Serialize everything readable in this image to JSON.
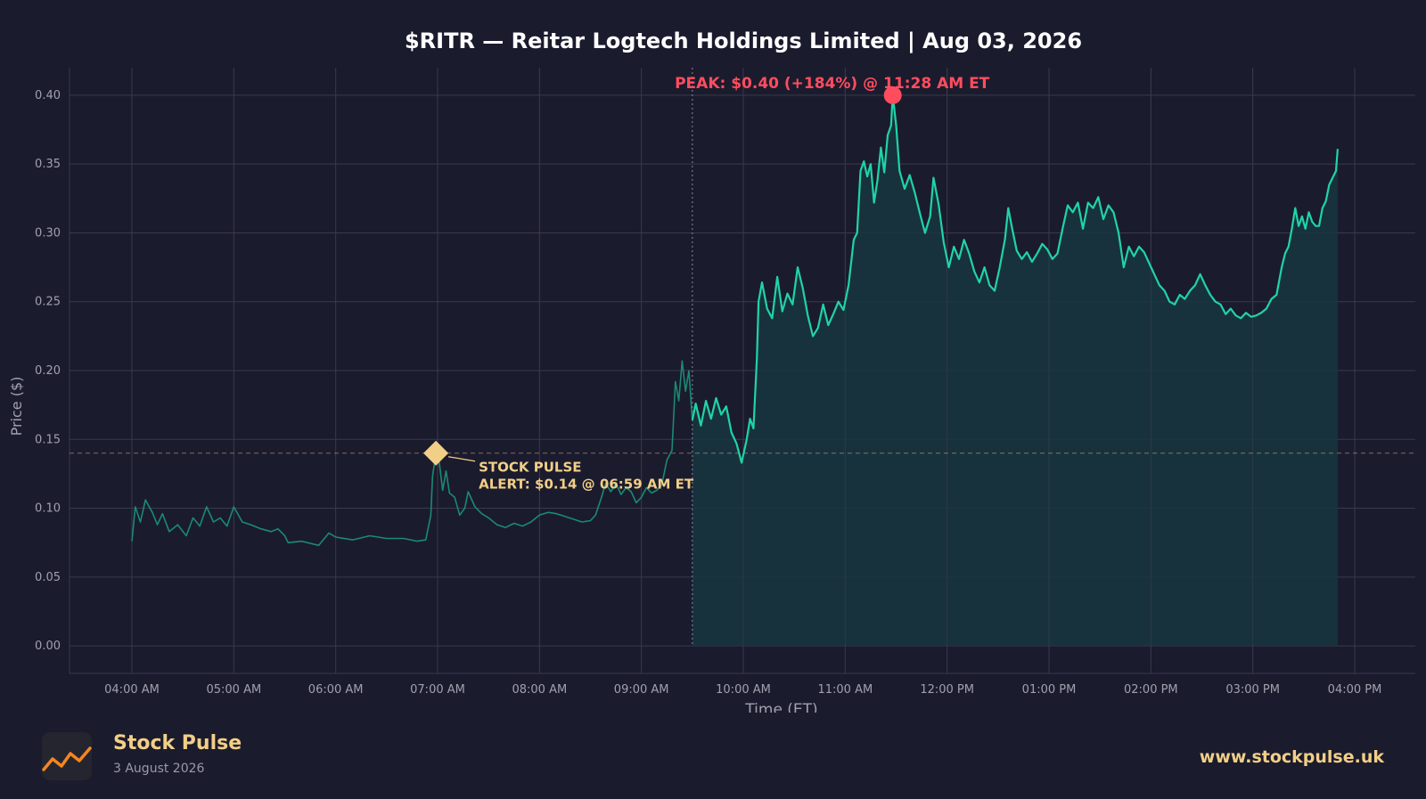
{
  "colors": {
    "background": "#1b1b2e",
    "grid": "#3a3a4f",
    "axis_text": "#a0a0ad",
    "line": "#1fd4a6",
    "premarket_line": "#1a8a72",
    "fill": "#18363f",
    "peak": "#ff4d5e",
    "alert": "#f2cf87"
  },
  "chart_data": {
    "type": "line",
    "title": "$RITR — Reitar Logtech Holdings Limited  |  Aug 03, 2026",
    "xlabel": "Time (ET)",
    "ylabel": "Price ($)",
    "ylim": [
      -0.02,
      0.42
    ],
    "yticks": [
      0.0,
      0.05,
      0.1,
      0.15,
      0.2,
      0.25,
      0.3,
      0.35,
      0.4
    ],
    "ytick_labels": [
      "0.00",
      "0.05",
      "0.10",
      "0.15",
      "0.20",
      "0.25",
      "0.30",
      "0.35",
      "0.40"
    ],
    "xticks": [
      "04:00 AM",
      "05:00 AM",
      "06:00 AM",
      "07:00 AM",
      "08:00 AM",
      "09:00 AM",
      "10:00 AM",
      "11:00 AM",
      "12:00 PM",
      "01:00 PM",
      "02:00 PM",
      "03:00 PM",
      "04:00 PM"
    ],
    "grid": true,
    "market_open": "09:30 AM",
    "alert_price": 0.14,
    "series": [
      {
        "points": [
          [
            "04:00 AM",
            0.076
          ],
          [
            "04:02 AM",
            0.101
          ],
          [
            "04:05 AM",
            0.09
          ],
          [
            "04:08 AM",
            0.106
          ],
          [
            "04:12 AM",
            0.097
          ],
          [
            "04:15 AM",
            0.088
          ],
          [
            "04:18 AM",
            0.096
          ],
          [
            "04:22 AM",
            0.083
          ],
          [
            "04:27 AM",
            0.088
          ],
          [
            "04:32 AM",
            0.08
          ],
          [
            "04:36 AM",
            0.093
          ],
          [
            "04:40 AM",
            0.087
          ],
          [
            "04:44 AM",
            0.101
          ],
          [
            "04:48 AM",
            0.09
          ],
          [
            "04:52 AM",
            0.093
          ],
          [
            "04:56 AM",
            0.087
          ],
          [
            "05:00 AM",
            0.101
          ],
          [
            "05:05 AM",
            0.09
          ],
          [
            "05:10 AM",
            0.088
          ],
          [
            "05:16 AM",
            0.085
          ],
          [
            "05:22 AM",
            0.083
          ],
          [
            "05:26 AM",
            0.085
          ],
          [
            "05:30 AM",
            0.08
          ],
          [
            "05:32 AM",
            0.075
          ],
          [
            "05:40 AM",
            0.076
          ],
          [
            "05:50 AM",
            0.073
          ],
          [
            "05:56 AM",
            0.082
          ],
          [
            "06:00 AM",
            0.079
          ],
          [
            "06:10 AM",
            0.077
          ],
          [
            "06:20 AM",
            0.08
          ],
          [
            "06:30 AM",
            0.078
          ],
          [
            "06:40 AM",
            0.078
          ],
          [
            "06:48 AM",
            0.076
          ],
          [
            "06:53 AM",
            0.077
          ],
          [
            "06:56 AM",
            0.095
          ],
          [
            "06:57 AM",
            0.123
          ],
          [
            "06:59 AM",
            0.14
          ],
          [
            "07:01 AM",
            0.133
          ],
          [
            "07:03 AM",
            0.113
          ],
          [
            "07:05 AM",
            0.127
          ],
          [
            "07:07 AM",
            0.111
          ],
          [
            "07:10 AM",
            0.108
          ],
          [
            "07:13 AM",
            0.095
          ],
          [
            "07:16 AM",
            0.1
          ],
          [
            "07:18 AM",
            0.112
          ],
          [
            "07:22 AM",
            0.101
          ],
          [
            "07:26 AM",
            0.096
          ],
          [
            "07:30 AM",
            0.093
          ],
          [
            "07:35 AM",
            0.088
          ],
          [
            "07:40 AM",
            0.086
          ],
          [
            "07:45 AM",
            0.089
          ],
          [
            "07:50 AM",
            0.087
          ],
          [
            "07:55 AM",
            0.09
          ],
          [
            "08:00 AM",
            0.095
          ],
          [
            "08:05 AM",
            0.097
          ],
          [
            "08:10 AM",
            0.096
          ],
          [
            "08:15 AM",
            0.094
          ],
          [
            "08:20 AM",
            0.092
          ],
          [
            "08:25 AM",
            0.09
          ],
          [
            "08:30 AM",
            0.091
          ],
          [
            "08:33 AM",
            0.095
          ],
          [
            "08:36 AM",
            0.106
          ],
          [
            "08:39 AM",
            0.118
          ],
          [
            "08:42 AM",
            0.112
          ],
          [
            "08:45 AM",
            0.118
          ],
          [
            "08:48 AM",
            0.11
          ],
          [
            "08:51 AM",
            0.115
          ],
          [
            "08:54 AM",
            0.112
          ],
          [
            "08:57 AM",
            0.104
          ],
          [
            "09:00 AM",
            0.108
          ],
          [
            "09:03 AM",
            0.115
          ],
          [
            "09:06 AM",
            0.111
          ],
          [
            "09:09 AM",
            0.113
          ],
          [
            "09:12 AM",
            0.117
          ],
          [
            "09:15 AM",
            0.135
          ],
          [
            "09:18 AM",
            0.142
          ],
          [
            "09:20 AM",
            0.192
          ],
          [
            "09:22 AM",
            0.178
          ],
          [
            "09:24 AM",
            0.207
          ],
          [
            "09:26 AM",
            0.185
          ],
          [
            "09:28 AM",
            0.2
          ],
          [
            "09:30 AM",
            0.164
          ],
          [
            "09:32 AM",
            0.176
          ],
          [
            "09:35 AM",
            0.16
          ],
          [
            "09:38 AM",
            0.178
          ],
          [
            "09:41 AM",
            0.165
          ],
          [
            "09:44 AM",
            0.18
          ],
          [
            "09:47 AM",
            0.168
          ],
          [
            "09:50 AM",
            0.174
          ],
          [
            "09:53 AM",
            0.155
          ],
          [
            "09:56 AM",
            0.147
          ],
          [
            "09:59 AM",
            0.133
          ],
          [
            "10:02 AM",
            0.15
          ],
          [
            "10:04 AM",
            0.165
          ],
          [
            "10:06 AM",
            0.158
          ],
          [
            "10:08 AM",
            0.208
          ],
          [
            "10:09 AM",
            0.25
          ],
          [
            "10:11 AM",
            0.264
          ],
          [
            "10:14 AM",
            0.245
          ],
          [
            "10:17 AM",
            0.238
          ],
          [
            "10:20 AM",
            0.268
          ],
          [
            "10:23 AM",
            0.243
          ],
          [
            "10:26 AM",
            0.256
          ],
          [
            "10:29 AM",
            0.248
          ],
          [
            "10:32 AM",
            0.275
          ],
          [
            "10:35 AM",
            0.26
          ],
          [
            "10:38 AM",
            0.24
          ],
          [
            "10:41 AM",
            0.225
          ],
          [
            "10:44 AM",
            0.231
          ],
          [
            "10:47 AM",
            0.248
          ],
          [
            "10:50 AM",
            0.233
          ],
          [
            "10:53 AM",
            0.241
          ],
          [
            "10:56 AM",
            0.25
          ],
          [
            "10:59 AM",
            0.244
          ],
          [
            "11:02 AM",
            0.262
          ],
          [
            "11:05 AM",
            0.295
          ],
          [
            "11:07 AM",
            0.3
          ],
          [
            "11:09 AM",
            0.345
          ],
          [
            "11:11 AM",
            0.352
          ],
          [
            "11:13 AM",
            0.341
          ],
          [
            "11:15 AM",
            0.35
          ],
          [
            "11:17 AM",
            0.322
          ],
          [
            "11:19 AM",
            0.338
          ],
          [
            "11:21 AM",
            0.362
          ],
          [
            "11:23 AM",
            0.344
          ],
          [
            "11:25 AM",
            0.371
          ],
          [
            "11:27 AM",
            0.378
          ],
          [
            "11:28 AM",
            0.4
          ],
          [
            "11:30 AM",
            0.378
          ],
          [
            "11:32 AM",
            0.345
          ],
          [
            "11:35 AM",
            0.332
          ],
          [
            "11:38 AM",
            0.342
          ],
          [
            "11:41 AM",
            0.329
          ],
          [
            "11:44 AM",
            0.314
          ],
          [
            "11:47 AM",
            0.3
          ],
          [
            "11:50 AM",
            0.312
          ],
          [
            "11:52 AM",
            0.34
          ],
          [
            "11:55 AM",
            0.321
          ],
          [
            "11:58 AM",
            0.293
          ],
          [
            "12:01 PM",
            0.275
          ],
          [
            "12:04 PM",
            0.29
          ],
          [
            "12:07 PM",
            0.281
          ],
          [
            "12:10 PM",
            0.295
          ],
          [
            "12:13 PM",
            0.285
          ],
          [
            "12:16 PM",
            0.272
          ],
          [
            "12:19 PM",
            0.264
          ],
          [
            "12:22 PM",
            0.275
          ],
          [
            "12:25 PM",
            0.262
          ],
          [
            "12:28 PM",
            0.258
          ],
          [
            "12:31 PM",
            0.275
          ],
          [
            "12:34 PM",
            0.295
          ],
          [
            "12:36 PM",
            0.318
          ],
          [
            "12:38 PM",
            0.305
          ],
          [
            "12:41 PM",
            0.287
          ],
          [
            "12:44 PM",
            0.281
          ],
          [
            "12:47 PM",
            0.286
          ],
          [
            "12:50 PM",
            0.279
          ],
          [
            "12:53 PM",
            0.285
          ],
          [
            "12:56 PM",
            0.292
          ],
          [
            "12:59 PM",
            0.288
          ],
          [
            "13:02 PM",
            0.281
          ],
          [
            "13:05 PM",
            0.285
          ],
          [
            "13:08 PM",
            0.303
          ],
          [
            "13:11 PM",
            0.32
          ],
          [
            "13:14 PM",
            0.315
          ],
          [
            "13:17 PM",
            0.322
          ],
          [
            "13:20 PM",
            0.303
          ],
          [
            "13:23 PM",
            0.322
          ],
          [
            "13:26 PM",
            0.318
          ],
          [
            "13:29 PM",
            0.326
          ],
          [
            "13:32 PM",
            0.31
          ],
          [
            "13:35 PM",
            0.32
          ],
          [
            "13:38 PM",
            0.315
          ],
          [
            "13:41 PM",
            0.3
          ],
          [
            "13:44 PM",
            0.275
          ],
          [
            "13:47 PM",
            0.29
          ],
          [
            "13:50 PM",
            0.283
          ],
          [
            "13:53 PM",
            0.29
          ],
          [
            "13:56 PM",
            0.286
          ],
          [
            "13:59 PM",
            0.278
          ],
          [
            "14:02 PM",
            0.27
          ],
          [
            "14:05 PM",
            0.262
          ],
          [
            "14:08 PM",
            0.258
          ],
          [
            "14:11 PM",
            0.25
          ],
          [
            "14:14 PM",
            0.248
          ],
          [
            "14:17 PM",
            0.255
          ],
          [
            "14:20 PM",
            0.252
          ],
          [
            "14:23 PM",
            0.258
          ],
          [
            "14:26 PM",
            0.262
          ],
          [
            "14:29 PM",
            0.27
          ],
          [
            "14:32 PM",
            0.262
          ],
          [
            "14:35 PM",
            0.255
          ],
          [
            "14:38 PM",
            0.25
          ],
          [
            "14:41 PM",
            0.248
          ],
          [
            "14:44 PM",
            0.241
          ],
          [
            "14:47 PM",
            0.245
          ],
          [
            "14:50 PM",
            0.24
          ],
          [
            "14:53 PM",
            0.238
          ],
          [
            "14:56 PM",
            0.242
          ],
          [
            "14:59 PM",
            0.239
          ],
          [
            "15:02 PM",
            0.24
          ],
          [
            "15:05 PM",
            0.242
          ],
          [
            "15:08 PM",
            0.245
          ],
          [
            "15:11 PM",
            0.252
          ],
          [
            "15:14 PM",
            0.255
          ],
          [
            "15:17 PM",
            0.275
          ],
          [
            "15:19 PM",
            0.285
          ],
          [
            "15:21 PM",
            0.29
          ],
          [
            "15:23 PM",
            0.303
          ],
          [
            "15:25 PM",
            0.318
          ],
          [
            "15:27 PM",
            0.305
          ],
          [
            "15:29 PM",
            0.312
          ],
          [
            "15:31 PM",
            0.303
          ],
          [
            "15:33 PM",
            0.315
          ],
          [
            "15:35 PM",
            0.308
          ],
          [
            "15:37 PM",
            0.305
          ],
          [
            "15:39 PM",
            0.305
          ],
          [
            "15:41 PM",
            0.318
          ],
          [
            "15:43 PM",
            0.323
          ],
          [
            "15:45 PM",
            0.335
          ],
          [
            "15:47 PM",
            0.34
          ],
          [
            "15:49 PM",
            0.345
          ],
          [
            "15:50 PM",
            0.361
          ]
        ]
      }
    ],
    "annotations": {
      "peak": {
        "time": "11:28 AM",
        "price": 0.4,
        "line1": "PEAK: $0.40 (+184%) @ 11:28 AM ET"
      },
      "alert": {
        "time": "06:59 AM",
        "price": 0.14,
        "line1": "STOCK PULSE",
        "line2": "ALERT: $0.14 @ 06:59 AM ET"
      }
    }
  },
  "footer": {
    "brand": "Stock Pulse",
    "date": "3 August 2026",
    "url": "www.stockpulse.uk",
    "logo_icon": "chart-trend-icon"
  }
}
